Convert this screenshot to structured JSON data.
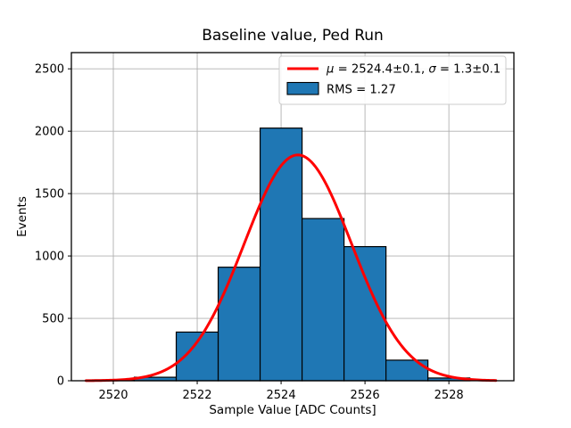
{
  "chart_data": {
    "type": "histogram",
    "title": "Baseline value, Ped Run",
    "xlabel": "Sample Value [ADC Counts]",
    "ylabel": "Events",
    "xlim": [
      2519.0,
      2529.55
    ],
    "ylim": [
      0,
      2630
    ],
    "grid": true,
    "bins": {
      "edges": [
        2519.5,
        2520.5,
        2521.5,
        2522.5,
        2523.5,
        2524.5,
        2525.5,
        2526.5,
        2527.5,
        2528.5
      ],
      "counts": [
        7,
        28,
        390,
        910,
        2025,
        1300,
        1075,
        165,
        22
      ]
    },
    "x_ticks": {
      "values": [
        2520,
        2522,
        2524,
        2526,
        2528
      ],
      "labels": [
        "2520",
        "2522",
        "2524",
        "2526",
        "2528"
      ]
    },
    "y_ticks": {
      "values": [
        0,
        500,
        1000,
        1500,
        2000,
        2500
      ],
      "labels": [
        "0",
        "500",
        "1000",
        "1500",
        "2000",
        "2500"
      ]
    },
    "fit_curve": {
      "type": "gaussian",
      "mu": 2524.4,
      "sigma": 1.28,
      "amplitude": 1810,
      "x_range": [
        2519.35,
        2529.12
      ]
    },
    "colors": {
      "bar_fill": "#1f77b4",
      "bar_edge": "#000000",
      "grid": "#b0b0b0",
      "curve": "#ff0000",
      "spine": "#000000",
      "legend_border": "#cccccc"
    },
    "legend": {
      "position": "upper right",
      "entries": [
        {
          "type": "line",
          "label": "μ = 2524.4±0.1, σ = 1.3±0.1",
          "parts": {
            "mu": "μ",
            "mid": " = 2524.4±0.1, ",
            "sigma": "σ",
            "end": " = 1.3±0.1"
          }
        },
        {
          "type": "patch",
          "label": "RMS = 1.27"
        }
      ]
    }
  }
}
